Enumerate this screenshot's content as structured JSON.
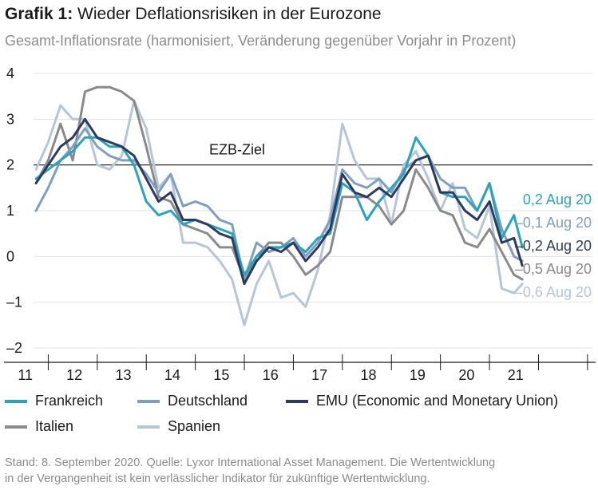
{
  "header": {
    "title_prefix": "Grafik 1:",
    "title_text": " Wieder Deflationsrisiken in der Eurozone",
    "subtitle": "Gesamt-Inflationsrate (harmonisiert, Veränderung gegenüber Vorjahr in Prozent)"
  },
  "colors": {
    "Frankreich": "#2aa3bb",
    "Deutschland": "#7f9fc1",
    "EMU": "#2b3a5e",
    "Italien": "#8a8a8a",
    "Spanien": "#b5c6d8",
    "axis": "#1a1a1a",
    "grid": "#e3e3e3"
  },
  "chart_data": {
    "type": "line",
    "x_tick_labels": [
      "11",
      "12",
      "13",
      "14",
      "15",
      "16",
      "17",
      "18",
      "19",
      "20",
      "21"
    ],
    "y_ticks": [
      4,
      3,
      2,
      1,
      0,
      -1,
      -2
    ],
    "y_tick_labels": [
      "4",
      "3",
      "2",
      "1",
      "0",
      "–1",
      "–2"
    ],
    "ylim": [
      -2,
      4
    ],
    "xlim": [
      2010.7,
      2022.1
    ],
    "reference_line": {
      "value": 2,
      "label": "EZB-Ziel"
    },
    "end_labels": [
      {
        "series": "Frankreich",
        "text": "0,2 Aug 20"
      },
      {
        "series": "Deutschland",
        "text": "–0,1 Aug 20"
      },
      {
        "series": "EMU",
        "text": "–0,2 Aug 20"
      },
      {
        "series": "Italien",
        "text": "–0,5 Aug 20"
      },
      {
        "series": "Spanien",
        "text": "–0,6 Aug 20"
      }
    ],
    "series": [
      {
        "name": "Frankreich",
        "x": [
          2010.75,
          2011.0,
          2011.25,
          2011.5,
          2011.75,
          2012.0,
          2012.25,
          2012.5,
          2012.75,
          2013.0,
          2013.25,
          2013.5,
          2013.75,
          2014.0,
          2014.25,
          2014.5,
          2014.75,
          2015.0,
          2015.25,
          2015.5,
          2015.75,
          2016.0,
          2016.25,
          2016.5,
          2016.75,
          2017.0,
          2017.25,
          2017.5,
          2017.75,
          2018.0,
          2018.25,
          2018.5,
          2018.75,
          2019.0,
          2019.25,
          2019.5,
          2019.75,
          2020.0,
          2020.25,
          2020.5,
          2020.67
        ],
        "y": [
          1.7,
          1.9,
          2.1,
          2.3,
          2.6,
          2.6,
          2.4,
          2.4,
          2.0,
          1.2,
          0.9,
          1.0,
          0.7,
          0.8,
          0.7,
          0.6,
          0.5,
          -0.4,
          0.0,
          0.2,
          0.2,
          0.3,
          0.1,
          0.4,
          0.5,
          1.6,
          1.4,
          0.8,
          1.2,
          1.5,
          1.8,
          2.6,
          2.2,
          1.4,
          1.3,
          1.3,
          1.0,
          1.6,
          0.4,
          0.9,
          0.2
        ]
      },
      {
        "name": "Deutschland",
        "x": [
          2010.75,
          2011.0,
          2011.25,
          2011.5,
          2011.75,
          2012.0,
          2012.25,
          2012.5,
          2012.75,
          2013.0,
          2013.25,
          2013.5,
          2013.75,
          2014.0,
          2014.25,
          2014.5,
          2014.75,
          2015.0,
          2015.25,
          2015.5,
          2015.75,
          2016.0,
          2016.25,
          2016.5,
          2016.75,
          2017.0,
          2017.25,
          2017.5,
          2017.75,
          2018.0,
          2018.25,
          2018.5,
          2018.75,
          2019.0,
          2019.25,
          2019.5,
          2019.75,
          2020.0,
          2020.25,
          2020.5,
          2020.67
        ],
        "y": [
          1.0,
          1.5,
          2.1,
          2.4,
          2.8,
          2.4,
          2.2,
          2.1,
          2.1,
          1.8,
          1.4,
          1.8,
          1.1,
          1.2,
          1.1,
          0.8,
          0.7,
          -0.5,
          0.3,
          0.1,
          0.2,
          0.4,
          0.0,
          0.3,
          0.8,
          1.9,
          1.6,
          1.5,
          1.7,
          1.4,
          1.9,
          2.1,
          2.2,
          1.7,
          1.5,
          1.5,
          1.0,
          1.6,
          0.6,
          0.0,
          -0.1
        ]
      },
      {
        "name": "EMU",
        "x": [
          2010.75,
          2011.0,
          2011.25,
          2011.5,
          2011.75,
          2012.0,
          2012.25,
          2012.5,
          2012.75,
          2013.0,
          2013.25,
          2013.5,
          2013.75,
          2014.0,
          2014.25,
          2014.5,
          2014.75,
          2015.0,
          2015.25,
          2015.5,
          2015.75,
          2016.0,
          2016.25,
          2016.5,
          2016.75,
          2017.0,
          2017.25,
          2017.5,
          2017.75,
          2018.0,
          2018.25,
          2018.5,
          2018.75,
          2019.0,
          2019.25,
          2019.5,
          2019.75,
          2020.0,
          2020.25,
          2020.5,
          2020.67
        ],
        "y": [
          1.6,
          2.0,
          2.4,
          2.6,
          3.0,
          2.6,
          2.5,
          2.4,
          2.2,
          1.7,
          1.2,
          1.4,
          0.8,
          0.8,
          0.7,
          0.5,
          0.4,
          -0.6,
          -0.1,
          0.2,
          0.1,
          0.3,
          -0.1,
          0.2,
          0.6,
          1.8,
          1.4,
          1.3,
          1.5,
          1.3,
          1.7,
          2.1,
          2.2,
          1.4,
          1.4,
          1.0,
          0.8,
          1.2,
          0.3,
          0.4,
          -0.2
        ]
      },
      {
        "name": "Italien",
        "x": [
          2010.75,
          2011.0,
          2011.25,
          2011.5,
          2011.75,
          2012.0,
          2012.25,
          2012.5,
          2012.75,
          2013.0,
          2013.25,
          2013.5,
          2013.75,
          2014.0,
          2014.25,
          2014.5,
          2014.75,
          2015.0,
          2015.25,
          2015.5,
          2015.75,
          2016.0,
          2016.25,
          2016.5,
          2016.75,
          2017.0,
          2017.25,
          2017.5,
          2017.75,
          2018.0,
          2018.25,
          2018.5,
          2018.75,
          2019.0,
          2019.25,
          2019.5,
          2019.75,
          2020.0,
          2020.25,
          2020.5,
          2020.67
        ],
        "y": [
          1.6,
          2.1,
          2.9,
          2.1,
          3.6,
          3.7,
          3.7,
          3.6,
          3.4,
          2.4,
          1.3,
          1.2,
          0.7,
          0.6,
          0.5,
          0.2,
          0.2,
          -0.5,
          0.0,
          0.3,
          0.3,
          0.0,
          -0.4,
          -0.2,
          0.1,
          1.3,
          1.3,
          1.3,
          1.1,
          0.7,
          1.0,
          1.9,
          1.5,
          1.0,
          0.9,
          0.3,
          0.2,
          0.6,
          0.1,
          -0.4,
          -0.5
        ]
      },
      {
        "name": "Spanien",
        "x": [
          2010.75,
          2011.0,
          2011.25,
          2011.5,
          2011.75,
          2012.0,
          2012.25,
          2012.5,
          2012.75,
          2013.0,
          2013.25,
          2013.5,
          2013.75,
          2014.0,
          2014.25,
          2014.5,
          2014.75,
          2015.0,
          2015.25,
          2015.5,
          2015.75,
          2016.0,
          2016.25,
          2016.5,
          2016.75,
          2017.0,
          2017.25,
          2017.5,
          2017.75,
          2018.0,
          2018.25,
          2018.5,
          2018.75,
          2019.0,
          2019.25,
          2019.5,
          2019.75,
          2020.0,
          2020.25,
          2020.5,
          2020.67
        ],
        "y": [
          1.9,
          2.5,
          3.3,
          3.0,
          3.0,
          2.0,
          1.9,
          2.2,
          3.4,
          2.8,
          1.5,
          1.8,
          0.3,
          0.3,
          0.2,
          -0.1,
          -0.5,
          -1.5,
          -0.6,
          -0.1,
          -0.9,
          -0.8,
          -1.1,
          -0.3,
          0.9,
          2.9,
          2.1,
          1.7,
          1.7,
          0.7,
          2.0,
          2.3,
          1.7,
          1.0,
          1.6,
          0.6,
          0.4,
          1.1,
          -0.7,
          -0.8,
          -0.6
        ]
      }
    ]
  },
  "legend": {
    "items": [
      {
        "key": "Frankreich",
        "label": "Frankreich"
      },
      {
        "key": "Deutschland",
        "label": "Deutschland"
      },
      {
        "key": "EMU",
        "label": "EMU (Economic and Monetary Union)"
      },
      {
        "key": "Italien",
        "label": "Italien"
      },
      {
        "key": "Spanien",
        "label": "Spanien"
      }
    ]
  },
  "footer": {
    "line1": "Stand: 8. September 2020. Quelle: Lyxor International Asset Management. Die Wertentwicklung",
    "line2": "in der Vergangenheit ist kein verlässlicher Indikator für zukünftige Wertentwicklung."
  }
}
